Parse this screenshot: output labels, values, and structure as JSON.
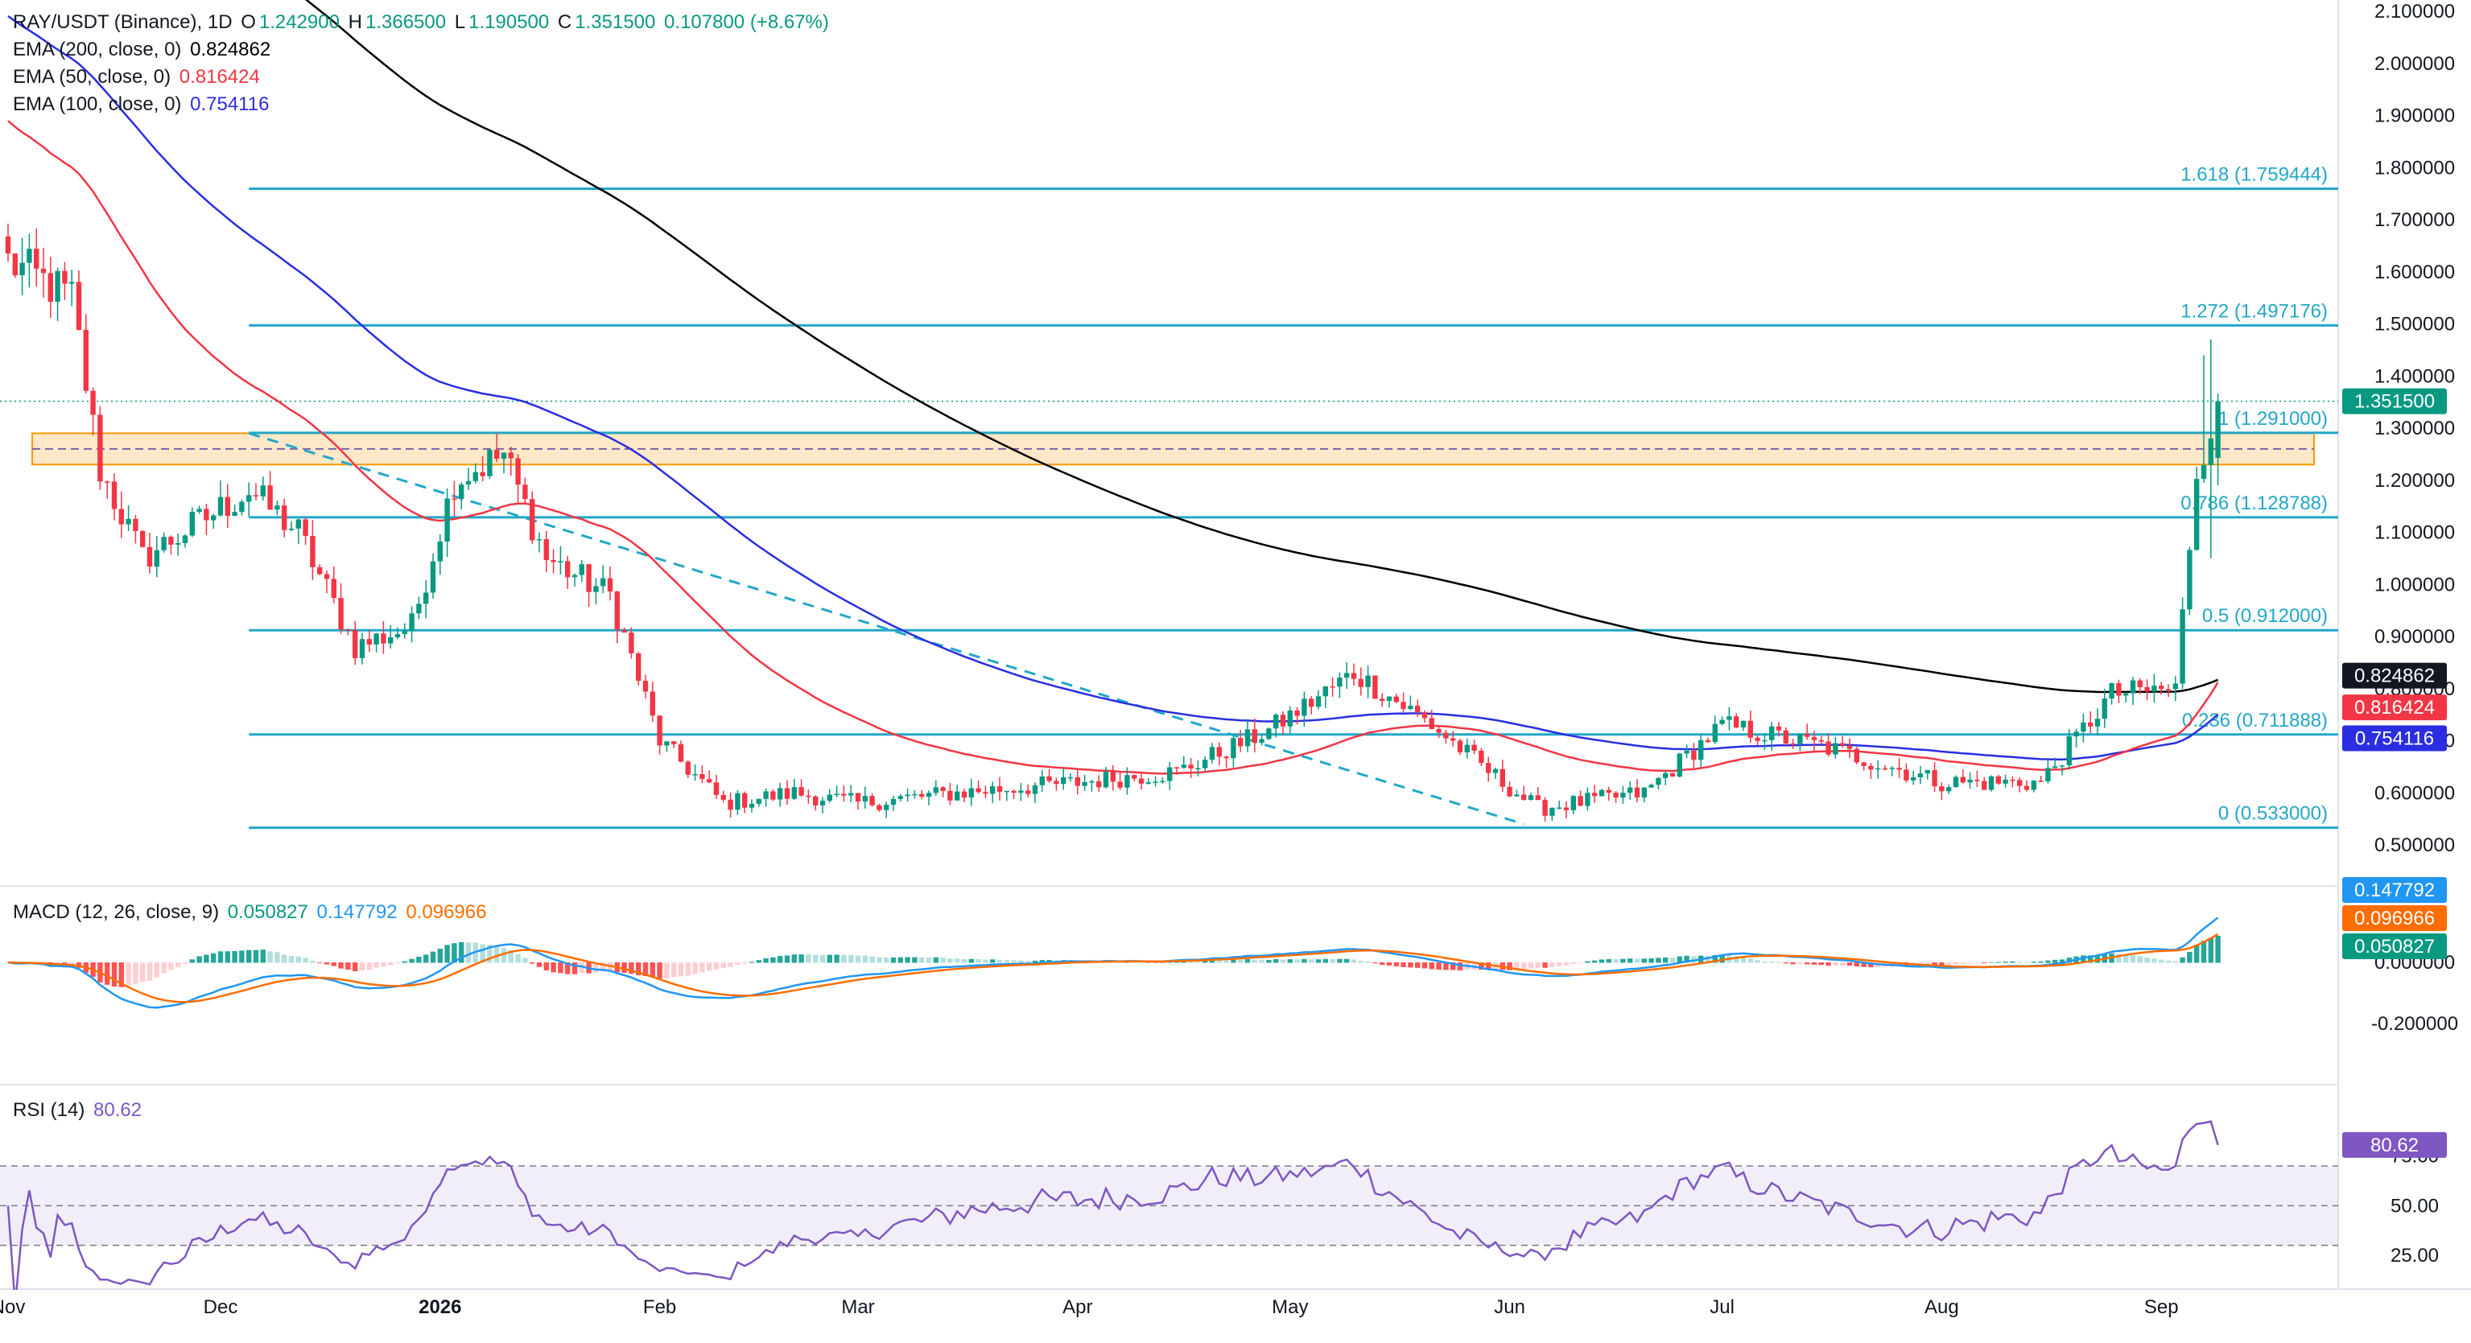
{
  "header": {
    "symbol": "RAY/USDT (Binance), 1D",
    "open_label": "O",
    "open": "1.242900",
    "high_label": "H",
    "high": "1.366500",
    "low_label": "L",
    "low": "1.190500",
    "close_label": "C",
    "close": "1.351500",
    "change": "0.107800 (+8.67%)",
    "ohlc_color": "#089981"
  },
  "emas": [
    {
      "label": "EMA (200, close, 0)",
      "value": "0.824862",
      "color": "#000000"
    },
    {
      "label": "EMA (50, close, 0)",
      "value": "0.816424",
      "color": "#f23645"
    },
    {
      "label": "EMA (100, close, 0)",
      "value": "0.754116",
      "color": "#2a2ee0"
    }
  ],
  "macd": {
    "label": "MACD (12, 26, close, 9)",
    "hist": "0.050827",
    "macd": "0.147792",
    "signal": "0.096966",
    "hist_color": "#089981",
    "macd_color": "#2196f3",
    "signal_color": "#ff6d00"
  },
  "rsi": {
    "label": "RSI (14)",
    "value": "80.62",
    "color": "#7e57c2"
  },
  "chart_data": {
    "type": "candlestick",
    "price_axis": {
      "min": 0.45,
      "max": 2.1,
      "ticks": [
        "2.100000",
        "2.000000",
        "1.900000",
        "1.800000",
        "1.700000",
        "1.600000",
        "1.500000",
        "1.400000",
        "1.300000",
        "1.200000",
        "1.100000",
        "1.000000",
        "0.900000",
        "0.800000",
        "0.700000",
        "0.600000",
        "0.500000"
      ]
    },
    "time_axis": [
      "Nov",
      "Dec",
      "2026",
      "Feb",
      "Mar",
      "Apr",
      "May",
      "Jun",
      "Jul",
      "Aug",
      "Sep"
    ],
    "last_price": {
      "value": "1.351500",
      "color": "#089981"
    },
    "ema_tags": [
      {
        "value": "0.824862",
        "color": "#131722"
      },
      {
        "value": "0.816424",
        "color": "#f23645"
      },
      {
        "value": "0.754116",
        "color": "#2a2ee0"
      }
    ],
    "fib_levels": [
      {
        "ratio": "0",
        "price": 0.533,
        "label": "0 (0.533000)"
      },
      {
        "ratio": "0.236",
        "price": 0.711888,
        "label": "0.236 (0.711888)"
      },
      {
        "ratio": "0.5",
        "price": 0.912,
        "label": "0.5 (0.912000)"
      },
      {
        "ratio": "0.786",
        "price": 1.128788,
        "label": "0.786 (1.128788)"
      },
      {
        "ratio": "1",
        "price": 1.291,
        "label": "1 (1.291000)"
      },
      {
        "ratio": "1.272",
        "price": 1.497176,
        "label": "1.272 (1.497176)"
      },
      {
        "ratio": "1.618",
        "price": 1.759444,
        "label": "1.618 (1.759444)"
      }
    ],
    "resistance_zone": {
      "low": 1.23,
      "high": 1.29,
      "mid": 1.26
    },
    "trendline": {
      "from": {
        "date": "Dec 5",
        "price": 1.29
      },
      "to": {
        "date": "Jun 3",
        "price": 0.54
      }
    },
    "close_series": [
      {
        "date": "Nov 1",
        "close": 1.62
      },
      {
        "date": "Nov 10",
        "close": 1.55
      },
      {
        "date": "Nov 14",
        "close": 1.22
      },
      {
        "date": "Nov 20",
        "close": 1.05
      },
      {
        "date": "Nov 28",
        "close": 1.12
      },
      {
        "date": "Dec 5",
        "close": 1.18
      },
      {
        "date": "Dec 12",
        "close": 1.1
      },
      {
        "date": "Dec 20",
        "close": 0.88
      },
      {
        "date": "Dec 28",
        "close": 0.92
      },
      {
        "date": "Jan 3",
        "close": 1.2
      },
      {
        "date": "Jan 10",
        "close": 1.25
      },
      {
        "date": "Jan 16",
        "close": 1.05
      },
      {
        "date": "Jan 25",
        "close": 0.98
      },
      {
        "date": "Feb 1",
        "close": 0.7
      },
      {
        "date": "Feb 10",
        "close": 0.58
      },
      {
        "date": "Feb 20",
        "close": 0.6
      },
      {
        "date": "Mar 1",
        "close": 0.58
      },
      {
        "date": "Mar 15",
        "close": 0.6
      },
      {
        "date": "Apr 1",
        "close": 0.62
      },
      {
        "date": "Apr 15",
        "close": 0.64
      },
      {
        "date": "Apr 28",
        "close": 0.72
      },
      {
        "date": "May 10",
        "close": 0.83
      },
      {
        "date": "May 20",
        "close": 0.74
      },
      {
        "date": "May 31",
        "close": 0.62
      },
      {
        "date": "Jun 5",
        "close": 0.57
      },
      {
        "date": "Jun 20",
        "close": 0.6
      },
      {
        "date": "Jul 1",
        "close": 0.73
      },
      {
        "date": "Jul 15",
        "close": 0.69
      },
      {
        "date": "Aug 1",
        "close": 0.62
      },
      {
        "date": "Aug 15",
        "close": 0.62
      },
      {
        "date": "Aug 25",
        "close": 0.79
      },
      {
        "date": "Sep 3",
        "close": 0.8
      },
      {
        "date": "Sep 6",
        "close": 1.22
      },
      {
        "date": "Sep 9",
        "close": 1.35
      }
    ],
    "macd_axis": {
      "ticks": [
        "0.000000",
        "-0.200000"
      ]
    },
    "rsi_axis": {
      "ticks": [
        "75.00",
        "50.00",
        "25.00"
      ],
      "upper": 70,
      "middle": 50,
      "lower": 30
    }
  }
}
